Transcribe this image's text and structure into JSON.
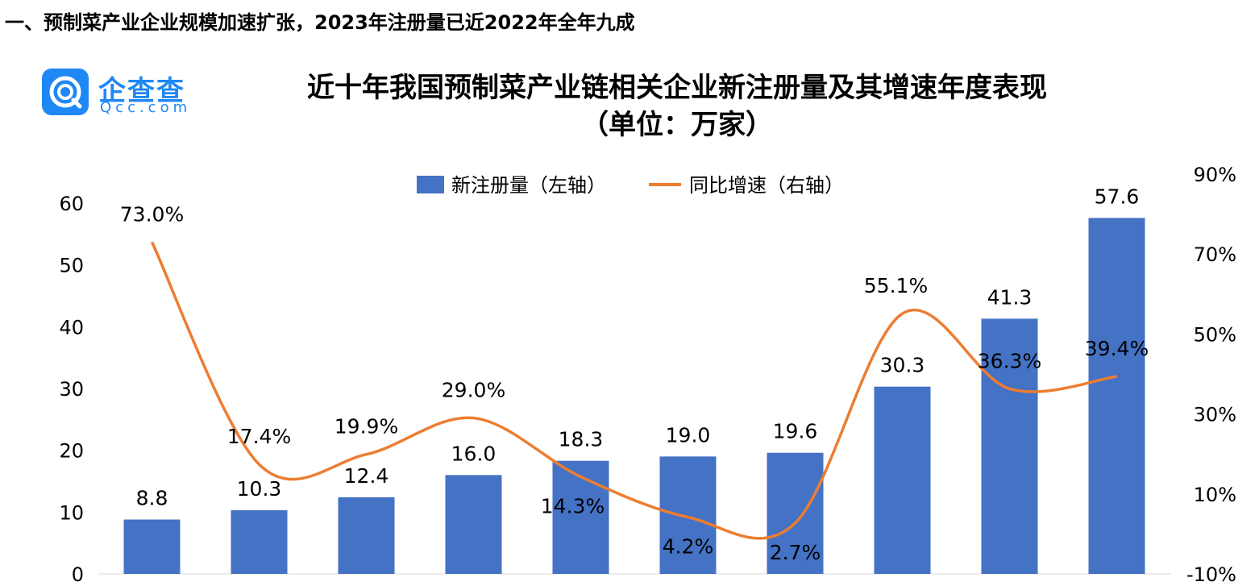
{
  "page": {
    "section_heading": "一、预制菜产业企业规模加速扩张，2023年注册量已近2022年全年九成"
  },
  "logo": {
    "name": "企查查",
    "domain": "Qcc.com",
    "brand_color": "#1e88f5"
  },
  "chart_data": {
    "type": "bar",
    "title": "近十年我国预制菜产业链相关企业新注册量及其增速年度表现",
    "subtitle": "（单位：万家）",
    "categories": [
      "",
      "",
      "",
      "",
      "",
      "",
      "",
      "",
      "",
      ""
    ],
    "series": [
      {
        "name": "新注册量（左轴）",
        "kind": "bar",
        "axis": "left",
        "color": "#4472c4",
        "values": [
          8.8,
          10.3,
          12.4,
          16.0,
          18.3,
          19.0,
          19.6,
          30.3,
          41.3,
          57.6
        ],
        "labels": [
          "8.8",
          "10.3",
          "12.4",
          "16.0",
          "18.3",
          "19.0",
          "19.6",
          "30.3",
          "41.3",
          "57.6"
        ]
      },
      {
        "name": "同比增速（右轴）",
        "kind": "line",
        "axis": "right",
        "color": "#ed7d31",
        "values": [
          73.0,
          17.4,
          19.9,
          29.0,
          14.3,
          4.2,
          2.7,
          55.1,
          36.3,
          39.4
        ],
        "labels": [
          "73.0%",
          "17.4%",
          "19.9%",
          "29.0%",
          "14.3%",
          "4.2%",
          "2.7%",
          "55.1%",
          "36.3%",
          "39.4%"
        ]
      }
    ],
    "y_left": {
      "ylim": [
        0,
        60
      ],
      "ticks": [
        0,
        10,
        20,
        30,
        40,
        50,
        60
      ],
      "tick_labels": [
        "0",
        "10",
        "20",
        "30",
        "40",
        "50",
        "60"
      ]
    },
    "y_right": {
      "ylim": [
        -10,
        90
      ],
      "ticks": [
        -10,
        10,
        30,
        50,
        70,
        90
      ],
      "tick_labels": [
        "-10%",
        "10%",
        "30%",
        "50%",
        "70%",
        "90%"
      ]
    },
    "legend_position": "top-center",
    "grid": false
  }
}
